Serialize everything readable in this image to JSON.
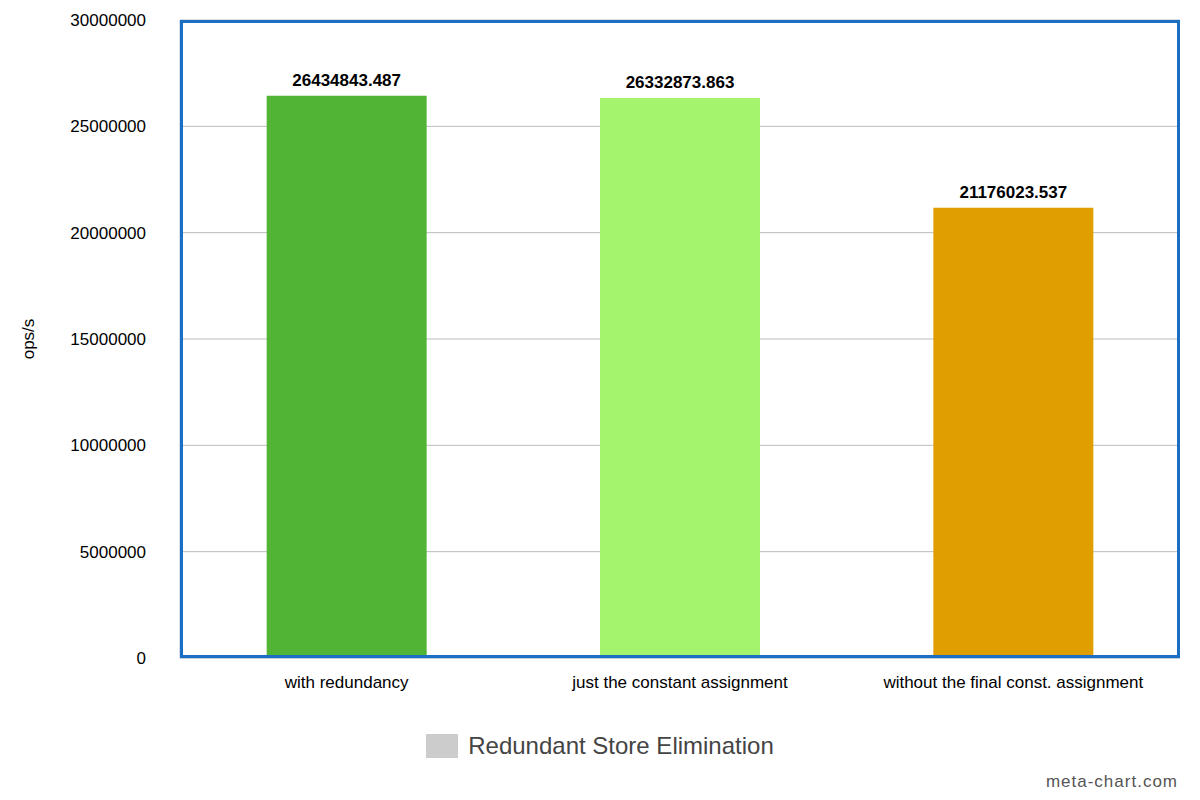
{
  "chart_data": {
    "type": "bar",
    "categories": [
      "with redundancy",
      "just the constant assignment",
      "without the final const. assignment"
    ],
    "series": [
      {
        "name": "Redundant Store Elimination",
        "color": "#cccccc",
        "values": [
          26434843.487,
          26332873.863,
          21176023.537
        ]
      }
    ],
    "colors": [
      "#52b435",
      "#a4f46e",
      "#e09e00"
    ],
    "y_label": "ops/s",
    "ylim": [
      0,
      30000000
    ],
    "yticks": [
      0,
      5000000,
      10000000,
      15000000,
      20000000,
      25000000,
      30000000
    ],
    "grid": true,
    "data_labels": true,
    "legend": "bottom",
    "annotations": [
      "meta-chart.com"
    ]
  }
}
